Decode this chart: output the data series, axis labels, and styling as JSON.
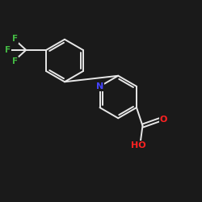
{
  "background_color": "#1a1a1a",
  "bond_color": "#e8e8e8",
  "atom_colors": {
    "N": "#4444ff",
    "O": "#ff2222",
    "F": "#44bb44",
    "C": "#e8e8e8",
    "H": "#e8e8e8"
  },
  "title": "",
  "figsize": [
    2.5,
    2.5
  ],
  "dpi": 100,
  "lw": 1.4
}
